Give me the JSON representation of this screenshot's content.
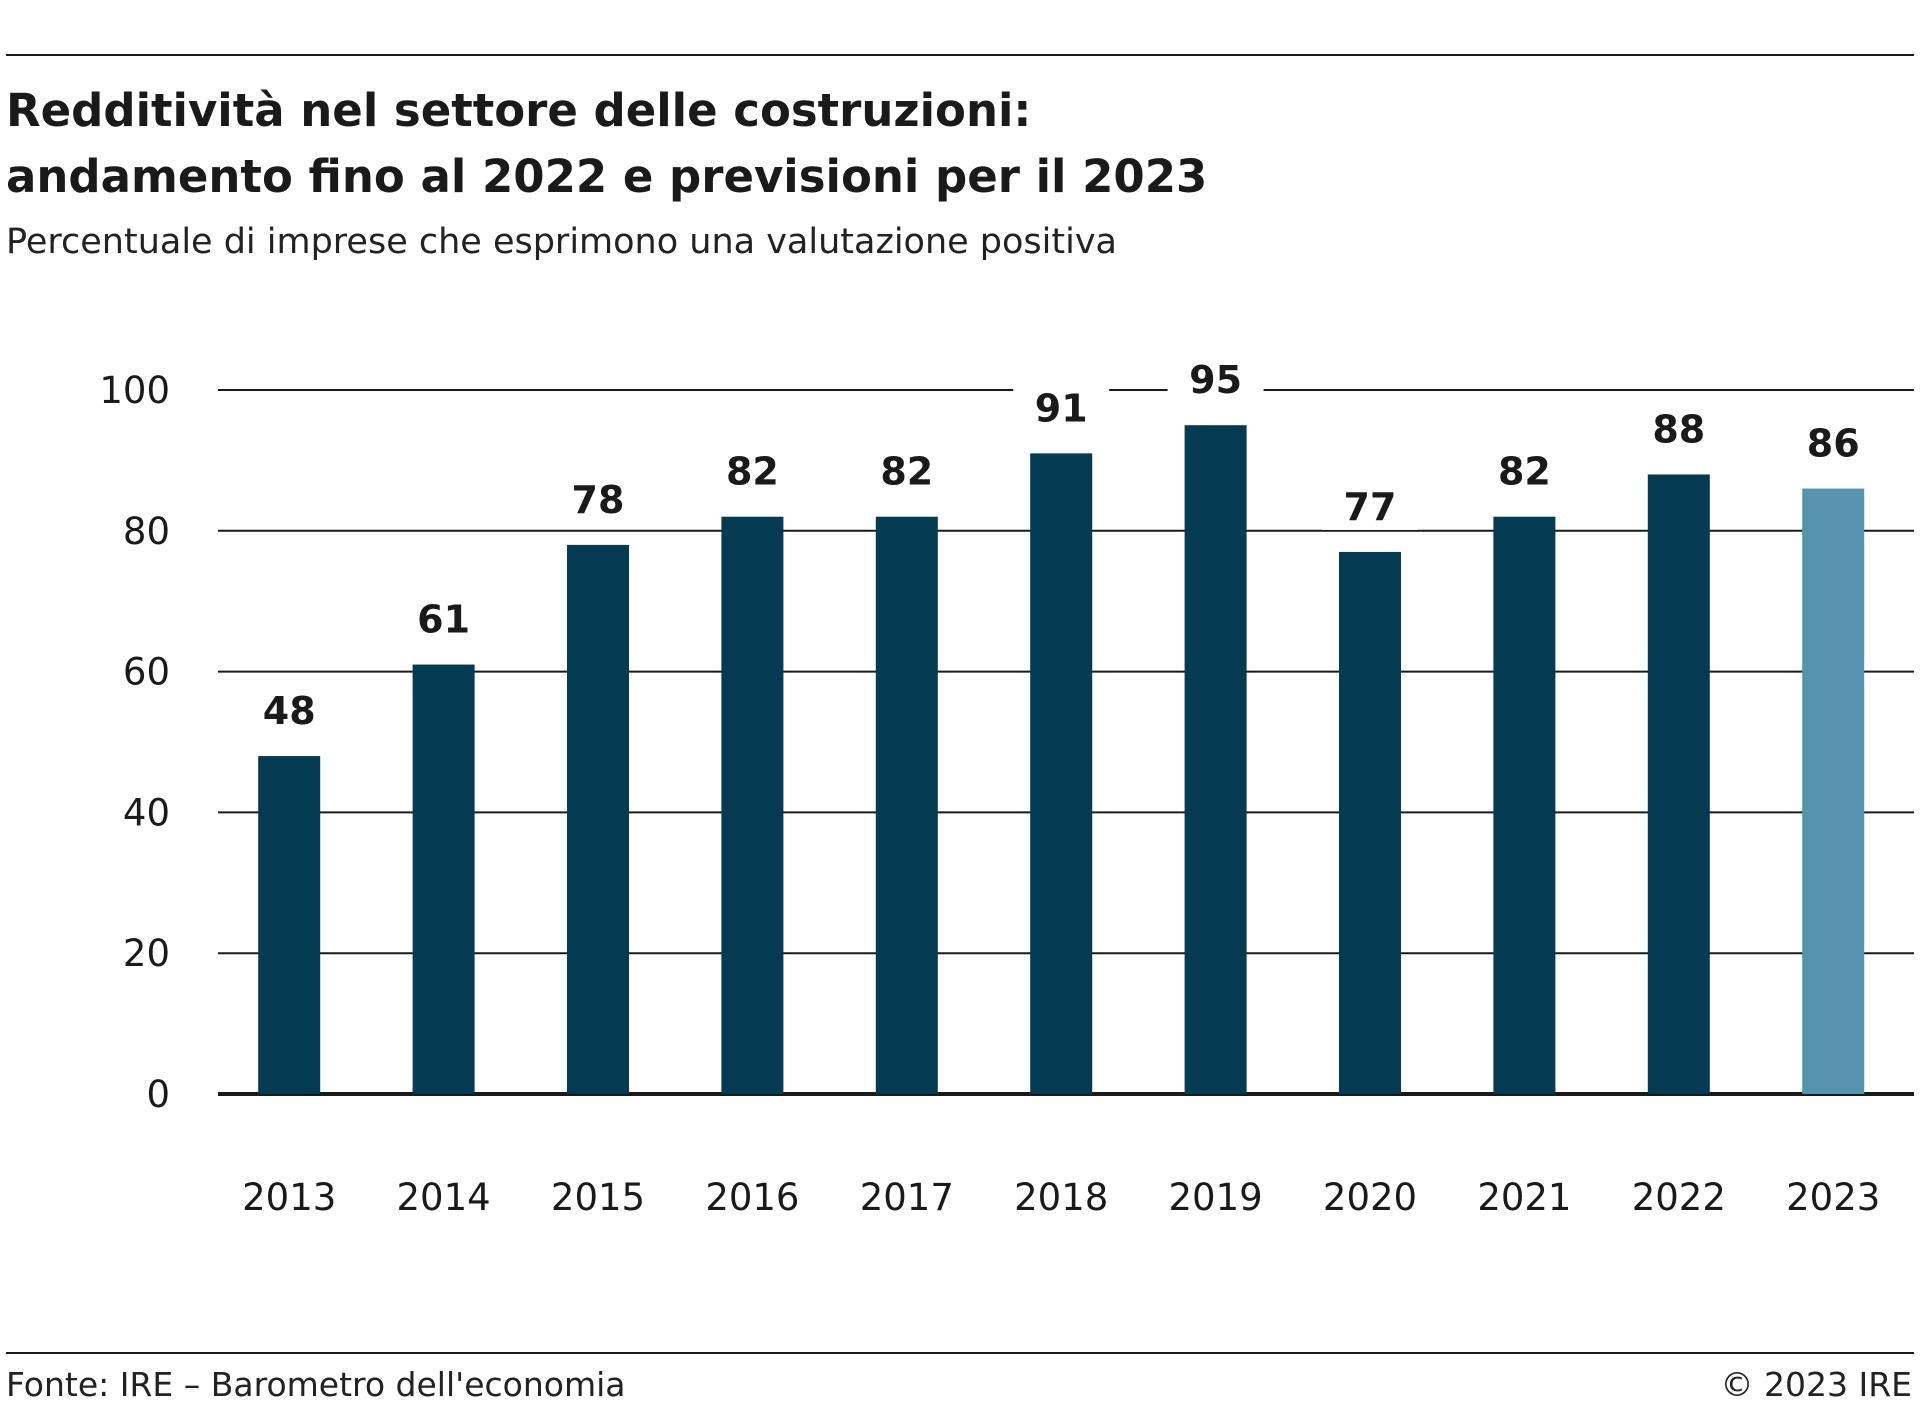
{
  "header": {
    "title_line1": "Redditività nel settore delle costruzioni:",
    "title_line2": "andamento fino al 2022 e previsioni per il 2023",
    "subtitle": "Percentuale di imprese che esprimono una valutazione positiva"
  },
  "footer": {
    "source": "Fonte: IRE – Barometro dell'economia",
    "copyright": "© 2023 IRE"
  },
  "colors": {
    "actual": "#043a52",
    "forecast": "#5593ae",
    "grid": "#1a1a1a"
  },
  "chart_data": {
    "type": "bar",
    "title": "Redditività nel settore delle costruzioni: andamento fino al 2022 e previsioni per il 2023",
    "subtitle": "Percentuale di imprese che esprimono una valutazione positiva",
    "xlabel": "",
    "ylabel": "",
    "categories": [
      "2013",
      "2014",
      "2015",
      "2016",
      "2017",
      "2018",
      "2019",
      "2020",
      "2021",
      "2022",
      "2023"
    ],
    "values": [
      48,
      61,
      78,
      82,
      82,
      91,
      95,
      77,
      82,
      88,
      86
    ],
    "forecast": [
      false,
      false,
      false,
      false,
      false,
      false,
      false,
      false,
      false,
      false,
      true
    ],
    "ylim": [
      0,
      100
    ],
    "yticks": [
      0,
      20,
      40,
      60,
      80,
      100
    ],
    "grid": true,
    "data_labels": true,
    "legend": "none"
  }
}
